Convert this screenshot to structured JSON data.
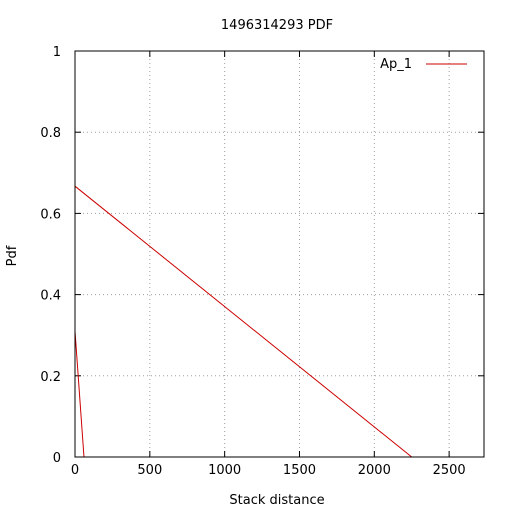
{
  "chart_data": {
    "type": "line",
    "title": "1496314293 PDF",
    "xlabel": "Stack distance",
    "ylabel": "Pdf",
    "xlim": [
      0,
      2733
    ],
    "ylim": [
      0,
      1
    ],
    "x_ticks": [
      0,
      500,
      1000,
      1500,
      2000,
      2500
    ],
    "y_ticks": [
      0,
      0.2,
      0.4,
      0.6,
      0.8,
      1
    ],
    "x_tick_labels": [
      "0",
      "500",
      "1000",
      "1500",
      "2000",
      "2500"
    ],
    "y_tick_labels": [
      "0",
      "0.2",
      "0.4",
      "0.6",
      "0.8",
      "1"
    ],
    "grid": true,
    "legend_position": "top-right",
    "series": [
      {
        "name": "Ap_1",
        "color": "#cc0000",
        "segments": [
          [
            [
              0,
              0.31
            ],
            [
              60,
              0
            ]
          ],
          [
            [
              0,
              0.667
            ],
            [
              2250,
              0
            ]
          ]
        ]
      }
    ]
  }
}
